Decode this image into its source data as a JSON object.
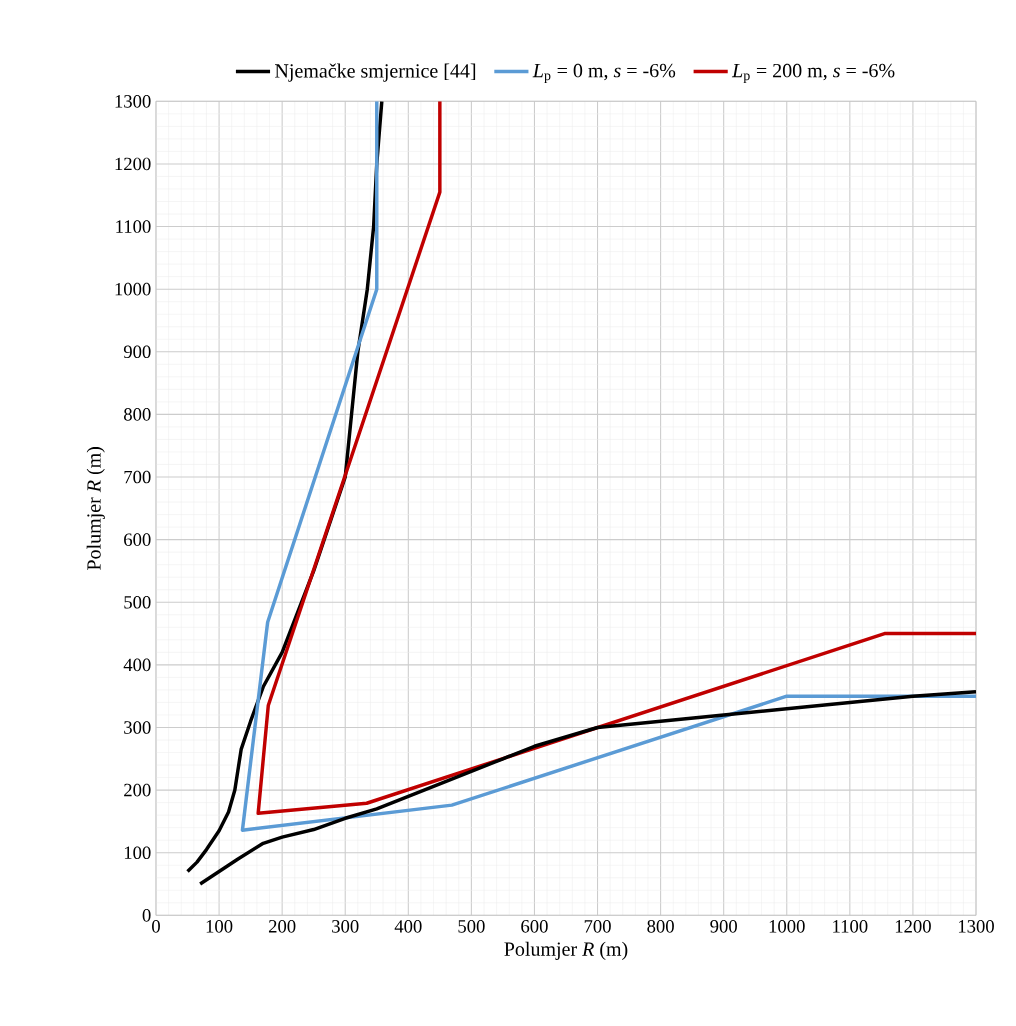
{
  "chart_data": {
    "type": "line",
    "xlabel": "Polumjer *R* (m)",
    "ylabel": "Polumjer *R* (m)",
    "xlim": [
      0,
      1300
    ],
    "ylim": [
      0,
      1300
    ],
    "xticks": [
      0,
      100,
      200,
      300,
      400,
      500,
      600,
      700,
      800,
      900,
      1000,
      1100,
      1200,
      1300
    ],
    "yticks": [
      0,
      100,
      200,
      300,
      400,
      500,
      600,
      700,
      800,
      900,
      1000,
      1100,
      1200,
      1300
    ],
    "grid": true,
    "legend": "top",
    "marker": "none",
    "line_style": "solid",
    "series": [
      {
        "name": "Njemačke smjernice [44]",
        "color": "#000000",
        "x": [
          50,
          65,
          80,
          100,
          115,
          125,
          135,
          150,
          170,
          200,
          250,
          300,
          310,
          320,
          335,
          345,
          350,
          358
        ],
        "values": [
          70,
          85,
          105,
          135,
          165,
          200,
          265,
          310,
          365,
          420,
          550,
          700,
          800,
          900,
          1000,
          1100,
          1200,
          1300
        ]
      },
      {
        "name": "*L*$_{p}$ =  0 m, *s* = -6%",
        "color": "#5b9bd5",
        "x": [
          350,
          350,
          177,
          137,
          469,
          1000,
          1300
        ],
        "values": [
          1300,
          1000,
          468,
          136,
          176,
          350,
          350
        ]
      },
      {
        "name": "*L*$_{p}$ =  200 m, *s* = -6%",
        "color": "#c00000",
        "x": [
          450,
          450,
          178,
          162,
          334,
          1155,
          1300
        ],
        "values": [
          1300,
          1155,
          335,
          163,
          179,
          450,
          450
        ]
      },
      {
        "color": "#000000",
        "x": [
          70,
          100,
          130,
          170,
          200,
          250,
          300,
          350,
          400,
          450,
          550,
          600,
          700,
          800,
          900,
          1000,
          1100,
          1200,
          1300
        ],
        "values": [
          50,
          70,
          90,
          115,
          125,
          137,
          155,
          170,
          190,
          210,
          250,
          270,
          300,
          310,
          320,
          330,
          340,
          350,
          357
        ]
      }
    ]
  }
}
